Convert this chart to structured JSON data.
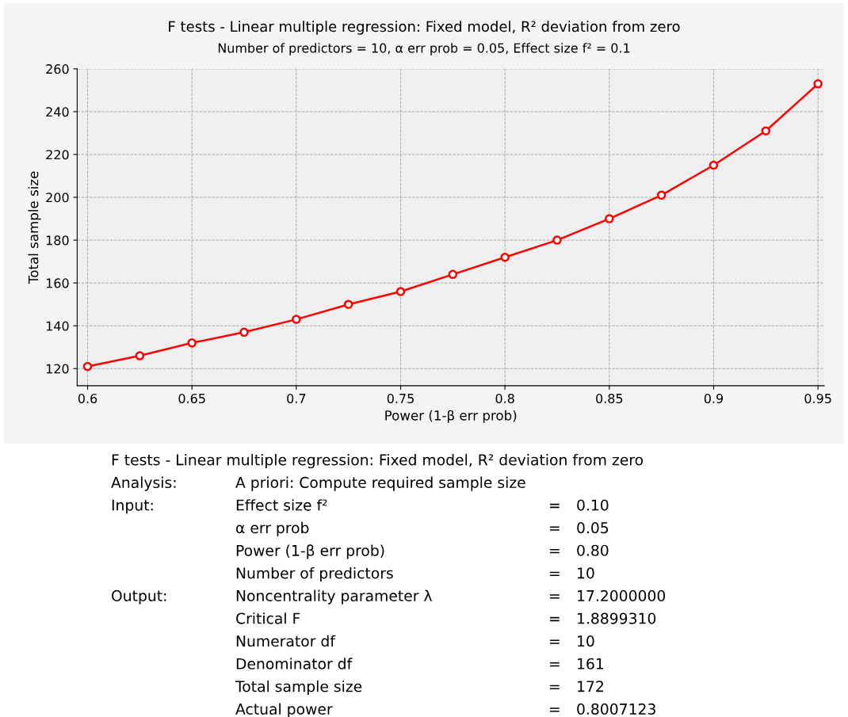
{
  "chart_data": {
    "type": "line",
    "title": "F tests - Linear multiple regression: Fixed model, R² deviation from zero",
    "subtitle": "Number of predictors = 10, α err prob = 0.05, Effect size f² = 0.1",
    "xlabel": "Power (1-β err prob)",
    "ylabel": "Total sample size",
    "x": [
      0.6,
      0.625,
      0.65,
      0.675,
      0.7,
      0.725,
      0.75,
      0.775,
      0.8,
      0.825,
      0.85,
      0.875,
      0.9,
      0.925,
      0.95
    ],
    "series": [
      {
        "color": "#ff0000",
        "values": [
          121,
          126,
          132,
          137,
          143,
          150,
          156,
          164,
          172,
          180,
          190,
          201,
          215,
          231,
          253
        ]
      }
    ],
    "xlim": [
      0.595,
      0.953
    ],
    "xticks": [
      0.6,
      0.65,
      0.7,
      0.75,
      0.8,
      0.85,
      0.9,
      0.95
    ],
    "ylim": [
      112,
      260
    ],
    "yticks": [
      120,
      140,
      160,
      180,
      200,
      220,
      240,
      260
    ],
    "grid": true,
    "marker": "circle",
    "line_style": "solid",
    "annotations": [
      "F tests - Linear multiple regression: Fixed model, R² deviation from zero",
      "Analysis:\tA priori: Compute required sample size",
      "Input:\tEffect size f²\t=\t0.10",
      "\tα err prob\t=\t0.05",
      "\tPower (1-β err prob)\t=\t0.80",
      "\tNumber of predictors\t=\t10",
      "Output:\tNoncentrality parameter λ\t=\t17.2000000",
      "\tCritical F\t=\t1.8899310",
      "\tNumerator df\t=\t10",
      "\tDenominator df\t=\t161",
      "\tTotal sample size\t=\t172",
      "\tActual power\t=\t0.8007123"
    ]
  }
}
